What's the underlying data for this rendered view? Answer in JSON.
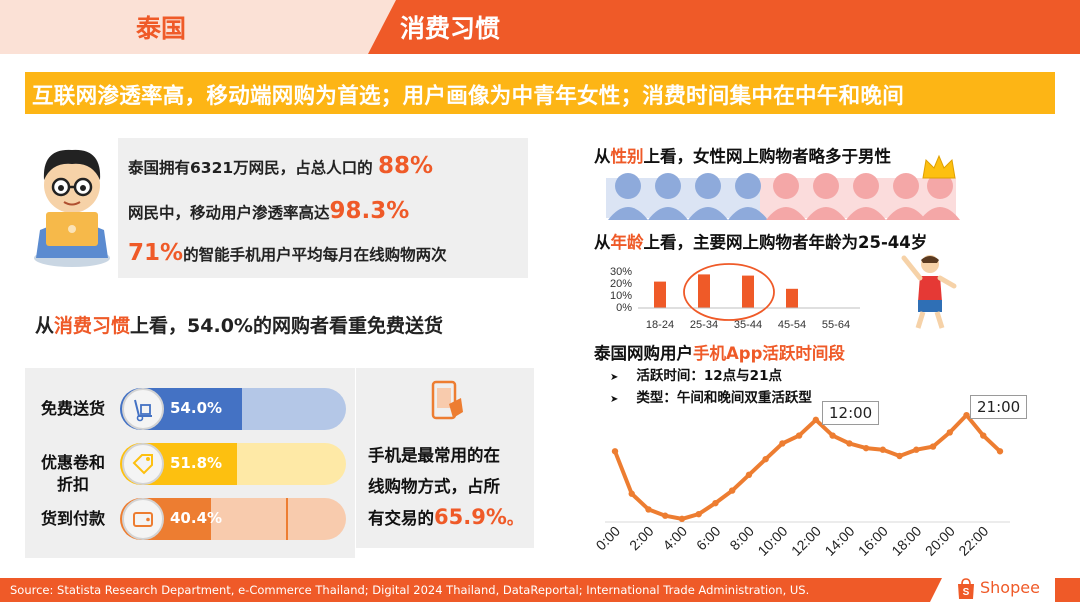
{
  "header": {
    "country": "泰国",
    "section": "消费习惯"
  },
  "banner": {
    "text": "互联网渗透率高，移动端网购为首选；用户画像为中青年女性；消费时间集中在中午和晚间"
  },
  "stats": {
    "line1_prefix": "泰国拥有6321万网民，占总人口的 ",
    "line1_value": "88%",
    "line2_prefix": "网民中，移动用户渗透率高达",
    "line2_value": "98.3%",
    "line3_value": "71%",
    "line3_suffix": "的智能手机用户平均每月在线购物两次"
  },
  "habits": {
    "title_prefix": "从",
    "title_highlight": "消费习惯",
    "title_suffix": "上看，54.0%的网购者看重免费送货",
    "items": [
      {
        "label": "免费送货",
        "value": "54.0%",
        "pct": 54.0,
        "color": "#4472c4",
        "track": "#b4c7e7",
        "icon": "hand-truck-icon"
      },
      {
        "label_line1": "优惠卷和",
        "label_line2": "折扣",
        "value": "51.8%",
        "pct": 51.8,
        "color": "#fdc010",
        "track": "#fee9a6",
        "icon": "discount-tag-icon"
      },
      {
        "label": "货到付款",
        "value": "40.4%",
        "pct": 40.4,
        "color": "#ed7d31",
        "track": "#f8cbad",
        "icon": "wallet-icon"
      }
    ]
  },
  "mobile": {
    "line1": "手机是最常用的在",
    "line2": "线购物方式，占所",
    "line3_prefix": "有交易的",
    "line3_value": "65.9%",
    "line3_suffix": "。",
    "icon": "phone-shopping-icon"
  },
  "gender": {
    "title_prefix": "从",
    "title_highlight": "性别",
    "title_suffix": "上看，女性网上购物者略多于男性",
    "male_color": "#8eaadb",
    "female_color": "#f4a7a7",
    "icon": "crown-icon"
  },
  "age": {
    "title_prefix": "从",
    "title_highlight": "年龄",
    "title_suffix": "上看，主要网上购物者年龄为25-44岁",
    "y_ticks": [
      "30%",
      "20%",
      "10%",
      "0%"
    ],
    "icon": "dancing-kid-icon"
  },
  "app_activity": {
    "title_prefix": "泰国网购用户",
    "title_highlight": "手机App活跃时间段",
    "bullet1": "活跃时间：12点与21点",
    "bullet2": "类型：午间和晚间双重活跃型",
    "callout_noon": "12:00",
    "callout_evening": "21:00"
  },
  "chart_data": [
    {
      "type": "bar",
      "categories": [
        "18-24",
        "25-34",
        "35-44",
        "45-54",
        "55-64"
      ],
      "values": [
        22,
        28,
        27,
        16,
        0
      ],
      "ylim": [
        0,
        30
      ],
      "y_ticks": [
        "30%",
        "20%",
        "10%",
        "0%"
      ],
      "color": "#ef5a28",
      "highlighted": [
        "25-34",
        "35-44"
      ]
    },
    {
      "type": "line",
      "x": [
        "0:00",
        "1:00",
        "2:00",
        "3:00",
        "4:00",
        "5:00",
        "6:00",
        "7:00",
        "8:00",
        "9:00",
        "10:00",
        "11:00",
        "12:00",
        "13:00",
        "14:00",
        "15:00",
        "16:00",
        "17:00",
        "18:00",
        "19:00",
        "20:00",
        "21:00",
        "22:00",
        "23:00"
      ],
      "x_tick_labels": [
        "0:00",
        "2:00",
        "4:00",
        "6:00",
        "8:00",
        "10:00",
        "12:00",
        "14:00",
        "16:00",
        "18:00",
        "20:00",
        "22:00"
      ],
      "values": [
        45,
        18,
        8,
        4,
        2,
        5,
        12,
        20,
        30,
        40,
        50,
        55,
        65,
        55,
        50,
        47,
        46,
        42,
        46,
        48,
        57,
        68,
        55,
        45
      ],
      "ylim": [
        0,
        70
      ],
      "color": "#ed7d31",
      "annotations": [
        "12:00",
        "21:00"
      ]
    }
  ]
}
